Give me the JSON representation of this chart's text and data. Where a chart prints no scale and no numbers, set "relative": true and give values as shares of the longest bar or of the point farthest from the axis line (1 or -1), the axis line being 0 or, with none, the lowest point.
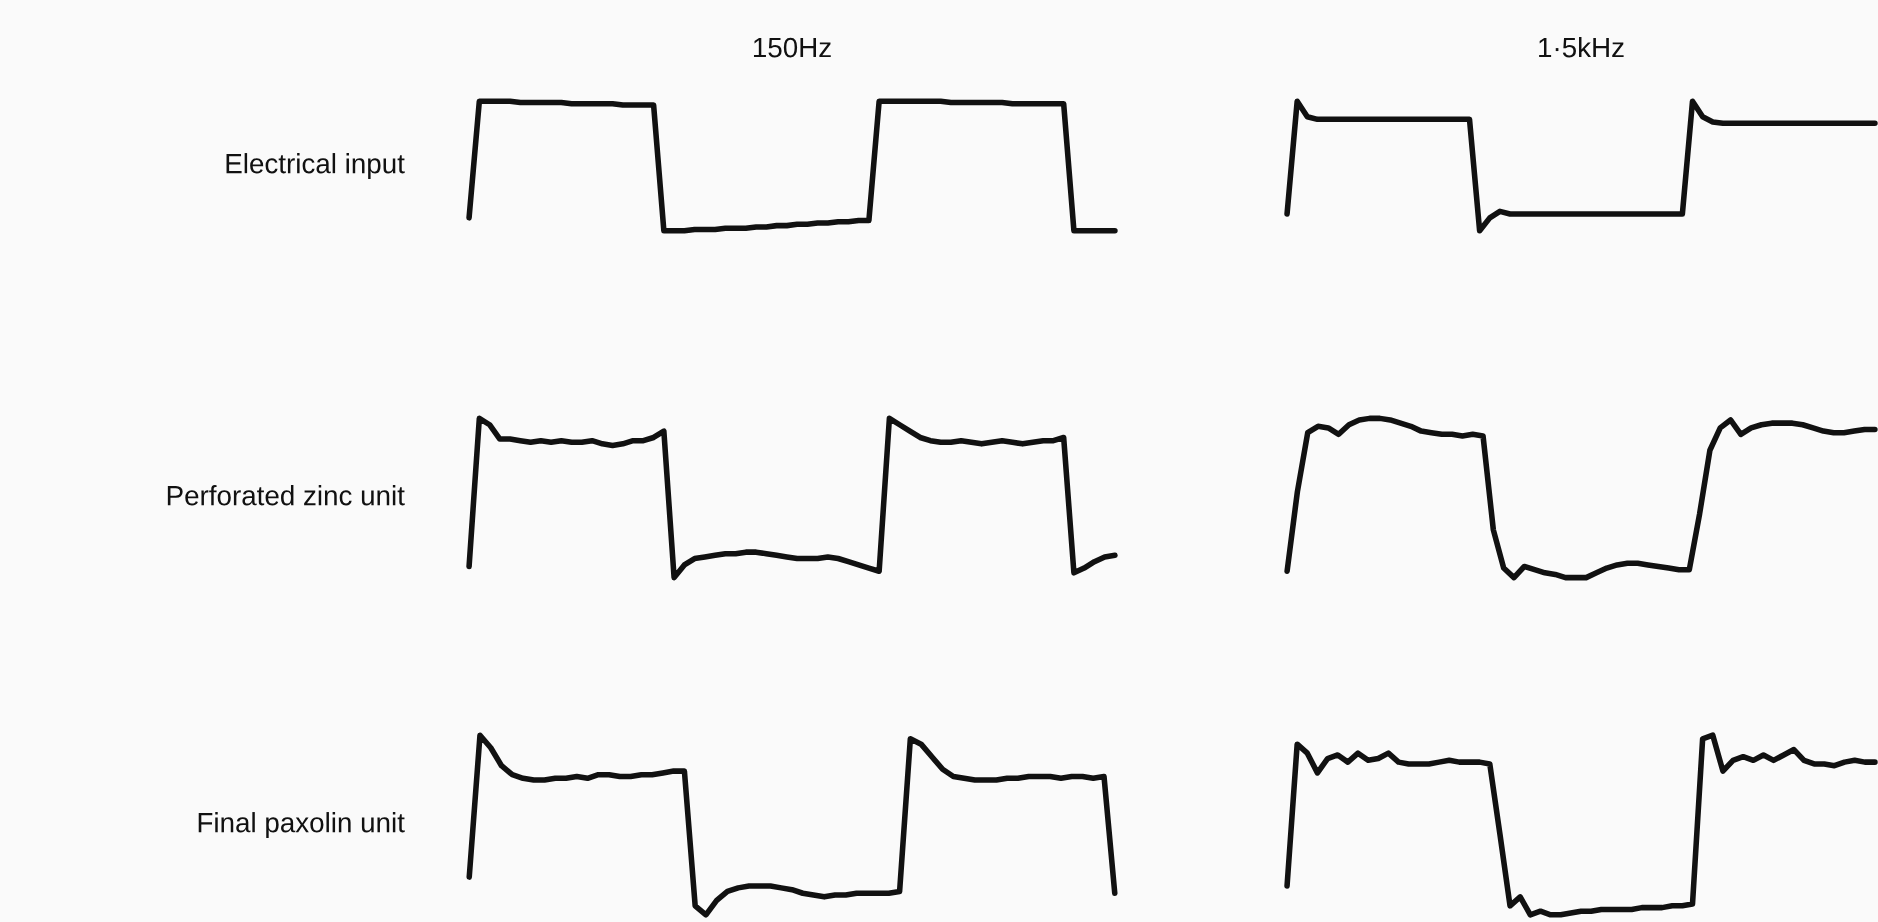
{
  "chart_data": [
    {
      "type": "line",
      "relative": true,
      "title": "150Hz",
      "ylabel": "Electrical input",
      "tick_labels": false,
      "grid": false,
      "legend": false,
      "categories": [
        null,
        null,
        null,
        null,
        null,
        null,
        null,
        null,
        null,
        null,
        null,
        null,
        null,
        null,
        null,
        null,
        null,
        null,
        null,
        null,
        null,
        null,
        null,
        null,
        null,
        null,
        null,
        null,
        null,
        null,
        null,
        null,
        null,
        null,
        null,
        null,
        null,
        null,
        null,
        null,
        null,
        null,
        null,
        null,
        null,
        null,
        null,
        null,
        null,
        null,
        null,
        null,
        null,
        null,
        null,
        null,
        null,
        null,
        null,
        null,
        null,
        null,
        null,
        null
      ],
      "series": [
        {
          "color": "#111111",
          "values": [
            0.1,
            1.0,
            1.0,
            1.0,
            1.0,
            0.99,
            0.99,
            0.99,
            0.99,
            0.99,
            0.98,
            0.98,
            0.98,
            0.98,
            0.98,
            0.97,
            0.97,
            0.97,
            0.97,
            0.0,
            0.0,
            0.0,
            0.01,
            0.01,
            0.01,
            0.02,
            0.02,
            0.02,
            0.03,
            0.03,
            0.04,
            0.04,
            0.05,
            0.05,
            0.06,
            0.06,
            0.07,
            0.07,
            0.08,
            0.08,
            1.0,
            1.0,
            1.0,
            1.0,
            1.0,
            1.0,
            1.0,
            0.99,
            0.99,
            0.99,
            0.99,
            0.99,
            0.99,
            0.98,
            0.98,
            0.98,
            0.98,
            0.98,
            0.98,
            0.0,
            0.0,
            0.0,
            0.0,
            0.0
          ]
        }
      ]
    },
    {
      "type": "line",
      "relative": true,
      "title": "1·5kHz",
      "tick_labels": false,
      "grid": false,
      "legend": false,
      "categories": [
        null,
        null,
        null,
        null,
        null,
        null,
        null,
        null,
        null,
        null,
        null,
        null,
        null,
        null,
        null,
        null,
        null,
        null,
        null,
        null,
        null,
        null,
        null,
        null,
        null,
        null,
        null,
        null,
        null,
        null,
        null,
        null,
        null,
        null,
        null,
        null,
        null,
        null,
        null,
        null,
        null,
        null,
        null,
        null,
        null,
        null,
        null,
        null,
        null,
        null,
        null,
        null,
        null,
        null,
        null,
        null,
        null,
        null,
        null
      ],
      "series": [
        {
          "color": "#111111",
          "values": [
            0.13,
            1.0,
            0.88,
            0.86,
            0.86,
            0.86,
            0.86,
            0.86,
            0.86,
            0.86,
            0.86,
            0.86,
            0.86,
            0.86,
            0.86,
            0.86,
            0.86,
            0.86,
            0.86,
            0.0,
            0.1,
            0.15,
            0.13,
            0.13,
            0.13,
            0.13,
            0.13,
            0.13,
            0.13,
            0.13,
            0.13,
            0.13,
            0.13,
            0.13,
            0.13,
            0.13,
            0.13,
            0.13,
            0.13,
            0.13,
            1.0,
            0.88,
            0.84,
            0.83,
            0.83,
            0.83,
            0.83,
            0.83,
            0.83,
            0.83,
            0.83,
            0.83,
            0.83,
            0.83,
            0.83,
            0.83,
            0.83,
            0.83,
            0.83
          ]
        }
      ]
    },
    {
      "type": "line",
      "relative": true,
      "ylabel": "Perforated zinc unit",
      "tick_labels": false,
      "grid": false,
      "legend": false,
      "categories": [
        null,
        null,
        null,
        null,
        null,
        null,
        null,
        null,
        null,
        null,
        null,
        null,
        null,
        null,
        null,
        null,
        null,
        null,
        null,
        null,
        null,
        null,
        null,
        null,
        null,
        null,
        null,
        null,
        null,
        null,
        null,
        null,
        null,
        null,
        null,
        null,
        null,
        null,
        null,
        null,
        null,
        null,
        null,
        null,
        null,
        null,
        null,
        null,
        null,
        null,
        null,
        null,
        null,
        null,
        null,
        null,
        null,
        null,
        null,
        null,
        null,
        null,
        null,
        null
      ],
      "series": [
        {
          "color": "#111111",
          "values": [
            0.07,
            1.0,
            0.96,
            0.87,
            0.87,
            0.86,
            0.85,
            0.86,
            0.85,
            0.86,
            0.85,
            0.85,
            0.86,
            0.84,
            0.83,
            0.84,
            0.86,
            0.86,
            0.88,
            0.92,
            0.0,
            0.08,
            0.12,
            0.13,
            0.14,
            0.15,
            0.15,
            0.16,
            0.16,
            0.15,
            0.14,
            0.13,
            0.12,
            0.12,
            0.12,
            0.13,
            0.12,
            0.1,
            0.08,
            0.06,
            0.04,
            1.0,
            0.96,
            0.92,
            0.88,
            0.86,
            0.85,
            0.85,
            0.86,
            0.85,
            0.84,
            0.85,
            0.86,
            0.85,
            0.84,
            0.85,
            0.86,
            0.86,
            0.88,
            0.03,
            0.06,
            0.1,
            0.13,
            0.14
          ]
        }
      ]
    },
    {
      "type": "line",
      "relative": true,
      "tick_labels": false,
      "grid": false,
      "legend": false,
      "categories": [
        null,
        null,
        null,
        null,
        null,
        null,
        null,
        null,
        null,
        null,
        null,
        null,
        null,
        null,
        null,
        null,
        null,
        null,
        null,
        null,
        null,
        null,
        null,
        null,
        null,
        null,
        null,
        null,
        null,
        null,
        null,
        null,
        null,
        null,
        null,
        null,
        null,
        null,
        null,
        null,
        null,
        null,
        null,
        null,
        null,
        null,
        null,
        null,
        null,
        null,
        null,
        null,
        null,
        null,
        null,
        null,
        null,
        null
      ],
      "series": [
        {
          "color": "#111111",
          "values": [
            0.04,
            0.54,
            0.91,
            0.95,
            0.94,
            0.9,
            0.96,
            0.99,
            1.0,
            1.0,
            0.99,
            0.97,
            0.95,
            0.92,
            0.91,
            0.9,
            0.9,
            0.89,
            0.9,
            0.89,
            0.3,
            0.06,
            0.0,
            0.07,
            0.05,
            0.03,
            0.02,
            0.0,
            0.0,
            0.0,
            0.03,
            0.06,
            0.08,
            0.09,
            0.09,
            0.08,
            0.07,
            0.06,
            0.05,
            0.05,
            0.4,
            0.8,
            0.94,
            0.99,
            0.9,
            0.94,
            0.96,
            0.97,
            0.97,
            0.97,
            0.96,
            0.94,
            0.92,
            0.91,
            0.91,
            0.92,
            0.93,
            0.93
          ]
        }
      ]
    },
    {
      "type": "line",
      "relative": true,
      "ylabel": "Final paxolin unit",
      "tick_labels": false,
      "grid": false,
      "legend": false,
      "categories": [
        null,
        null,
        null,
        null,
        null,
        null,
        null,
        null,
        null,
        null,
        null,
        null,
        null,
        null,
        null,
        null,
        null,
        null,
        null,
        null,
        null,
        null,
        null,
        null,
        null,
        null,
        null,
        null,
        null,
        null,
        null,
        null,
        null,
        null,
        null,
        null,
        null,
        null,
        null,
        null,
        null,
        null,
        null,
        null,
        null,
        null,
        null,
        null,
        null,
        null,
        null,
        null,
        null,
        null,
        null,
        null,
        null,
        null,
        null,
        null,
        null
      ],
      "series": [
        {
          "color": "#111111",
          "values": [
            0.21,
            1.0,
            0.93,
            0.83,
            0.78,
            0.76,
            0.75,
            0.75,
            0.76,
            0.76,
            0.77,
            0.76,
            0.78,
            0.78,
            0.77,
            0.77,
            0.78,
            0.78,
            0.79,
            0.8,
            0.8,
            0.05,
            0.0,
            0.08,
            0.13,
            0.15,
            0.16,
            0.16,
            0.16,
            0.15,
            0.14,
            0.12,
            0.11,
            0.1,
            0.11,
            0.11,
            0.12,
            0.12,
            0.12,
            0.12,
            0.13,
            0.98,
            0.95,
            0.88,
            0.81,
            0.77,
            0.76,
            0.75,
            0.75,
            0.75,
            0.76,
            0.76,
            0.77,
            0.77,
            0.77,
            0.76,
            0.77,
            0.77,
            0.76,
            0.77,
            0.12
          ]
        }
      ]
    },
    {
      "type": "line",
      "relative": true,
      "tick_labels": false,
      "grid": false,
      "legend": false,
      "categories": [
        null,
        null,
        null,
        null,
        null,
        null,
        null,
        null,
        null,
        null,
        null,
        null,
        null,
        null,
        null,
        null,
        null,
        null,
        null,
        null,
        null,
        null,
        null,
        null,
        null,
        null,
        null,
        null,
        null,
        null,
        null,
        null,
        null,
        null,
        null,
        null,
        null,
        null,
        null,
        null,
        null,
        null,
        null,
        null,
        null,
        null,
        null,
        null,
        null,
        null,
        null,
        null,
        null,
        null,
        null,
        null,
        null,
        null,
        null
      ],
      "series": [
        {
          "color": "#111111",
          "values": [
            0.16,
            0.95,
            0.9,
            0.79,
            0.87,
            0.89,
            0.85,
            0.9,
            0.86,
            0.87,
            0.9,
            0.85,
            0.84,
            0.84,
            0.84,
            0.85,
            0.86,
            0.85,
            0.85,
            0.85,
            0.84,
            0.45,
            0.05,
            0.1,
            0.0,
            0.02,
            0.0,
            0.0,
            0.01,
            0.02,
            0.02,
            0.03,
            0.03,
            0.03,
            0.03,
            0.04,
            0.04,
            0.04,
            0.05,
            0.05,
            0.06,
            0.98,
            1.0,
            0.8,
            0.86,
            0.88,
            0.86,
            0.89,
            0.86,
            0.89,
            0.92,
            0.86,
            0.84,
            0.84,
            0.83,
            0.85,
            0.86,
            0.85,
            0.85
          ]
        }
      ]
    }
  ]
}
